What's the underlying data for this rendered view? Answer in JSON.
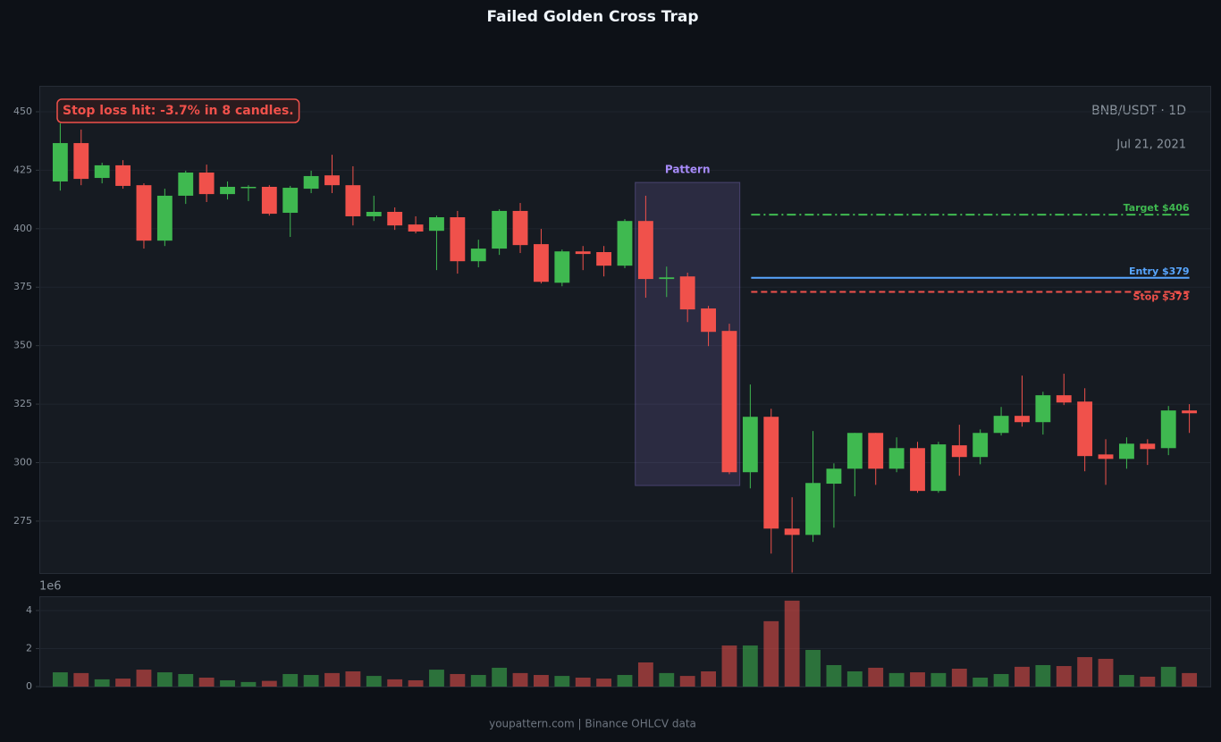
{
  "chart_data": {
    "type": "candlestick",
    "title": "Failed Golden Cross Trap",
    "symbol": "BNB/USDT · 1D",
    "date": "Jul 21, 2021",
    "annotation": "Stop loss hit: -3.7% in 8 candles.",
    "footer": "youpattern.com | Binance OHLCV data",
    "up_color": "#3fb950",
    "down_color": "#f0514b",
    "open": [
      420.2,
      436.6,
      421.7,
      427.1,
      418.6,
      394.9,
      414.1,
      424.0,
      414.8,
      417.5,
      417.9,
      406.8,
      417.1,
      422.8,
      418.6,
      405.3,
      407.2,
      401.8,
      399.1,
      404.9,
      386.1,
      391.5,
      407.6,
      393.4,
      376.9,
      390.3,
      390.0,
      384.2,
      403.3,
      378.5,
      379.6,
      365.9,
      356.3,
      295.9,
      319.6,
      271.8,
      269.1,
      291.0,
      297.4,
      312.7,
      297.4,
      306.2,
      287.9,
      307.4,
      302.4,
      312.7,
      320.0,
      317.3,
      328.8,
      326.1,
      303.5,
      301.6,
      308.1,
      306.2,
      322.3
    ],
    "high": [
      445.0,
      442.4,
      428.2,
      429.3,
      419.4,
      417.1,
      424.8,
      427.4,
      420.2,
      418.6,
      418.6,
      418.3,
      424.8,
      431.6,
      426.7,
      414.1,
      409.1,
      405.3,
      405.6,
      407.6,
      395.3,
      408.3,
      411.0,
      399.9,
      391.1,
      392.6,
      392.6,
      404.1,
      414.1,
      383.8,
      381.2,
      367.0,
      359.4,
      333.4,
      323.0,
      285.2,
      313.5,
      299.7,
      312.7,
      312.7,
      310.8,
      308.9,
      308.9,
      316.2,
      314.2,
      323.8,
      337.2,
      330.3,
      338.0,
      331.8,
      310.0,
      310.8,
      310.0,
      324.2,
      325.0
    ],
    "low": [
      416.3,
      418.6,
      419.4,
      417.1,
      391.5,
      392.6,
      410.6,
      411.4,
      412.5,
      411.8,
      405.6,
      396.5,
      415.2,
      415.2,
      401.4,
      403.3,
      399.5,
      398.0,
      382.3,
      380.8,
      383.5,
      388.8,
      389.6,
      376.6,
      375.4,
      382.3,
      379.6,
      383.1,
      370.5,
      370.8,
      360.1,
      349.8,
      295.1,
      289.0,
      261.1,
      253.0,
      266.1,
      272.2,
      285.6,
      290.5,
      295.9,
      287.1,
      287.1,
      294.4,
      299.3,
      311.6,
      315.4,
      312.0,
      324.6,
      296.3,
      290.5,
      297.4,
      299.0,
      303.2,
      312.7
    ],
    "close": [
      436.6,
      421.3,
      427.1,
      418.3,
      394.9,
      414.1,
      424.0,
      414.8,
      417.9,
      417.9,
      406.4,
      417.5,
      422.5,
      418.6,
      405.3,
      407.2,
      401.4,
      398.8,
      404.9,
      386.1,
      391.5,
      407.6,
      393.0,
      377.3,
      390.3,
      389.2,
      384.2,
      403.3,
      378.5,
      379.2,
      365.5,
      355.9,
      295.9,
      319.6,
      271.8,
      269.1,
      291.3,
      297.4,
      312.7,
      297.4,
      306.2,
      287.9,
      307.8,
      302.4,
      312.7,
      320.0,
      317.3,
      328.8,
      325.7,
      302.8,
      301.6,
      308.1,
      305.8,
      322.3,
      321.1
    ],
    "ylim": [
      252.8,
      460.7
    ],
    "yticks": [
      275,
      300,
      325,
      350,
      375,
      400,
      425,
      450
    ],
    "grid": true,
    "volume": [
      0.75,
      0.71,
      0.38,
      0.42,
      0.89,
      0.75,
      0.66,
      0.47,
      0.33,
      0.24,
      0.3,
      0.66,
      0.61,
      0.71,
      0.8,
      0.56,
      0.38,
      0.33,
      0.89,
      0.66,
      0.61,
      0.99,
      0.71,
      0.61,
      0.56,
      0.47,
      0.42,
      0.61,
      1.27,
      0.71,
      0.56,
      0.8,
      2.16,
      2.16,
      3.44,
      4.52,
      1.93,
      1.13,
      0.8,
      0.99,
      0.71,
      0.75,
      0.71,
      0.94,
      0.47,
      0.66,
      1.04,
      1.13,
      1.08,
      1.55,
      1.46,
      0.61,
      0.52,
      1.04,
      0.71
    ],
    "volume_offset": "1e6",
    "volume_ylim": [
      0,
      4.75
    ],
    "volume_yticks": [
      0,
      2,
      4
    ],
    "pattern": {
      "label": "Pattern",
      "start": 28,
      "end": 32,
      "top": 419.8,
      "bottom": 290.2,
      "color": "#a78bfa"
    },
    "levels": [
      {
        "label": "Target $406",
        "value": 406,
        "color": "#3fb950",
        "style": "dashdot",
        "start": 33,
        "label_side": "above"
      },
      {
        "label": "Entry $379",
        "value": 379,
        "color": "#58a6ff",
        "style": "solid",
        "start": 33,
        "label_side": "above"
      },
      {
        "label": "Stop $373",
        "value": 373,
        "color": "#f0514b",
        "style": "dashed",
        "start": 33,
        "label_side": "below"
      }
    ]
  }
}
